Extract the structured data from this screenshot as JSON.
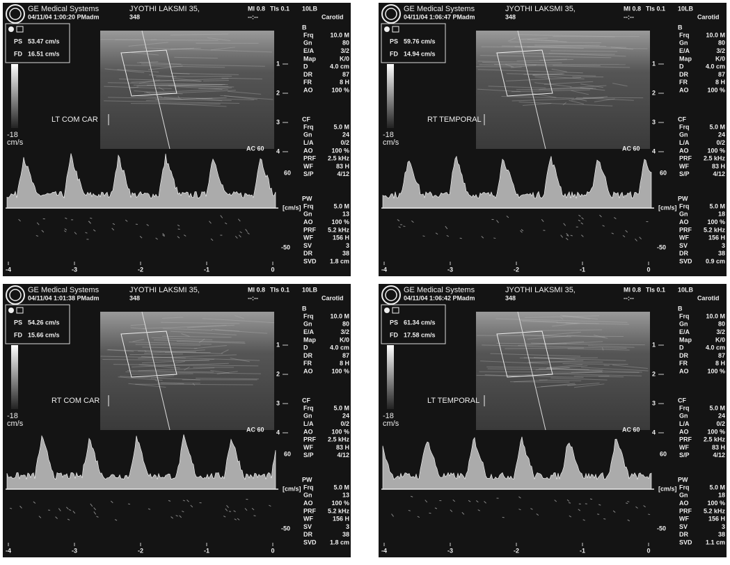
{
  "panels": [
    {
      "header": {
        "company": "GE Medical Systems",
        "datetime": "04/11/04 1:00:20 PM",
        "user": "adm",
        "patient": "JYOTHI LAKSMI 35,",
        "id": "348",
        "mi": "MI 0.8",
        "tis": "TIs 0.1",
        "probe": "10LB",
        "time": "--:--",
        "preset": "Carotid"
      },
      "measurements": {
        "ps_label": "PS",
        "ps_value": "53.47 cm/s",
        "fd_label": "FD",
        "fd_value": "16.51 cm/s"
      },
      "scale": {
        "min": "-18",
        "unit": "cm/s"
      },
      "vessel_label": "LT COM CAR",
      "ac": "AC 60",
      "depth_ticks": [
        "1",
        "2",
        "3",
        "4"
      ],
      "settings": [
        {
          "heading": "B",
          "rows": [
            [
              "Frq",
              "10.0 M"
            ],
            [
              "Gn",
              "80"
            ],
            [
              "E/A",
              "3/2"
            ],
            [
              "Map",
              "K/0"
            ],
            [
              "D",
              "4.0 cm"
            ],
            [
              "DR",
              "87"
            ],
            [
              "FR",
              "8 H"
            ],
            [
              "AO",
              "100 %"
            ]
          ]
        },
        {
          "heading": "CF",
          "rows": [
            [
              "Frq",
              "5.0 M"
            ],
            [
              "Gn",
              "24"
            ],
            [
              "L/A",
              "0/2"
            ],
            [
              "AO",
              "100 %"
            ],
            [
              "PRF",
              "2.5 kHz"
            ],
            [
              "WF",
              "83 H"
            ],
            [
              "S/P",
              "4/12"
            ]
          ]
        },
        {
          "heading": "PW",
          "rows": [
            [
              "Frq",
              "5.0 M"
            ],
            [
              "Gn",
              "13"
            ],
            [
              "AO",
              "100 %"
            ],
            [
              "PRF",
              "5.2 kHz"
            ],
            [
              "WF",
              "156 H"
            ],
            [
              "SV",
              "3"
            ],
            [
              "DR",
              "38"
            ],
            [
              "SVD",
              "1.8 cm"
            ]
          ]
        }
      ],
      "doppler": {
        "top": "60",
        "unit": "[cm/s]",
        "bottom": "-50",
        "time_ticks": [
          "-4",
          "-3",
          "-2",
          "-1",
          "0"
        ]
      }
    },
    {
      "header": {
        "company": "GE Medical Systems",
        "datetime": "04/11/04 1:06:47 PM",
        "user": "adm",
        "patient": "JYOTHI LAKSMI 35,",
        "id": "348",
        "mi": "MI 0.8",
        "tis": "TIs 0.1",
        "probe": "10LB",
        "time": "--:--",
        "preset": "Carotid"
      },
      "measurements": {
        "ps_label": "PS",
        "ps_value": "59.76 cm/s",
        "fd_label": "FD",
        "fd_value": "14.94 cm/s"
      },
      "scale": {
        "min": "-18",
        "unit": "cm/s"
      },
      "vessel_label": "RT TEMPORAL",
      "ac": "AC 60",
      "depth_ticks": [
        "1",
        "2",
        "3",
        "4"
      ],
      "settings": [
        {
          "heading": "B",
          "rows": [
            [
              "Frq",
              "10.0 M"
            ],
            [
              "Gn",
              "80"
            ],
            [
              "E/A",
              "3/2"
            ],
            [
              "Map",
              "K/0"
            ],
            [
              "D",
              "4.0 cm"
            ],
            [
              "DR",
              "87"
            ],
            [
              "FR",
              "8 H"
            ],
            [
              "AO",
              "100 %"
            ]
          ]
        },
        {
          "heading": "CF",
          "rows": [
            [
              "Frq",
              "5.0 M"
            ],
            [
              "Gn",
              "24"
            ],
            [
              "L/A",
              "0/2"
            ],
            [
              "AO",
              "100 %"
            ],
            [
              "PRF",
              "2.5 kHz"
            ],
            [
              "WF",
              "83 H"
            ],
            [
              "S/P",
              "4/12"
            ]
          ]
        },
        {
          "heading": "PW",
          "rows": [
            [
              "Frq",
              "5.0 M"
            ],
            [
              "Gn",
              "18"
            ],
            [
              "AO",
              "100 %"
            ],
            [
              "PRF",
              "5.2 kHz"
            ],
            [
              "WF",
              "156 H"
            ],
            [
              "SV",
              "3"
            ],
            [
              "DR",
              "38"
            ],
            [
              "SVD",
              "0.9 cm"
            ]
          ]
        }
      ],
      "doppler": {
        "top": "60",
        "unit": "[cm/s]",
        "bottom": "-50",
        "time_ticks": [
          "-4",
          "-3",
          "-2",
          "-1",
          "0"
        ]
      }
    },
    {
      "header": {
        "company": "GE Medical Systems",
        "datetime": "04/11/04 1:01:38 PM",
        "user": "adm",
        "patient": "JYOTHI LAKSMI 35,",
        "id": "348",
        "mi": "MI 0.8",
        "tis": "TIs 0.1",
        "probe": "10LB",
        "time": "--:--",
        "preset": "Carotid"
      },
      "measurements": {
        "ps_label": "PS",
        "ps_value": "54.26 cm/s",
        "fd_label": "FD",
        "fd_value": "15.66 cm/s"
      },
      "scale": {
        "min": "-18",
        "unit": "cm/s"
      },
      "vessel_label": "RT COM CAR",
      "ac": "AC 60",
      "depth_ticks": [
        "1",
        "2",
        "3",
        "4"
      ],
      "settings": [
        {
          "heading": "B",
          "rows": [
            [
              "Frq",
              "10.0 M"
            ],
            [
              "Gn",
              "80"
            ],
            [
              "E/A",
              "3/2"
            ],
            [
              "Map",
              "K/0"
            ],
            [
              "D",
              "4.0 cm"
            ],
            [
              "DR",
              "87"
            ],
            [
              "FR",
              "8 H"
            ],
            [
              "AO",
              "100 %"
            ]
          ]
        },
        {
          "heading": "CF",
          "rows": [
            [
              "Frq",
              "5.0 M"
            ],
            [
              "Gn",
              "24"
            ],
            [
              "L/A",
              "0/2"
            ],
            [
              "AO",
              "100 %"
            ],
            [
              "PRF",
              "2.5 kHz"
            ],
            [
              "WF",
              "83 H"
            ],
            [
              "S/P",
              "4/12"
            ]
          ]
        },
        {
          "heading": "PW",
          "rows": [
            [
              "Frq",
              "5.0 M"
            ],
            [
              "Gn",
              "13"
            ],
            [
              "AO",
              "100 %"
            ],
            [
              "PRF",
              "5.2 kHz"
            ],
            [
              "WF",
              "156 H"
            ],
            [
              "SV",
              "3"
            ],
            [
              "DR",
              "38"
            ],
            [
              "SVD",
              "1.8 cm"
            ]
          ]
        }
      ],
      "doppler": {
        "top": "60",
        "unit": "[cm/s]",
        "bottom": "-50",
        "time_ticks": [
          "-4",
          "-3",
          "-2",
          "-1",
          "0"
        ]
      }
    },
    {
      "header": {
        "company": "GE Medical Systems",
        "datetime": "04/11/04 1:06:42 PM",
        "user": "adm",
        "patient": "JYOTHI LAKSMI 35,",
        "id": "348",
        "mi": "MI 0.8",
        "tis": "TIs 0.1",
        "probe": "10LB",
        "time": "--:--",
        "preset": "Carotid"
      },
      "measurements": {
        "ps_label": "PS",
        "ps_value": "61.34 cm/s",
        "fd_label": "FD",
        "fd_value": "17.58 cm/s"
      },
      "scale": {
        "min": "-18",
        "unit": "cm/s"
      },
      "vessel_label": "LT TEMPORAL",
      "ac": "AC 60",
      "depth_ticks": [
        "1",
        "2",
        "3",
        "4"
      ],
      "settings": [
        {
          "heading": "B",
          "rows": [
            [
              "Frq",
              "10.0 M"
            ],
            [
              "Gn",
              "80"
            ],
            [
              "E/A",
              "3/2"
            ],
            [
              "Map",
              "K/0"
            ],
            [
              "D",
              "4.0 cm"
            ],
            [
              "DR",
              "87"
            ],
            [
              "FR",
              "8 H"
            ],
            [
              "AO",
              "100 %"
            ]
          ]
        },
        {
          "heading": "CF",
          "rows": [
            [
              "Frq",
              "5.0 M"
            ],
            [
              "Gn",
              "24"
            ],
            [
              "L/A",
              "0/2"
            ],
            [
              "AO",
              "100 %"
            ],
            [
              "PRF",
              "2.5 kHz"
            ],
            [
              "WF",
              "83 H"
            ],
            [
              "S/P",
              "4/12"
            ]
          ]
        },
        {
          "heading": "PW",
          "rows": [
            [
              "Frq",
              "5.0 M"
            ],
            [
              "Gn",
              "18"
            ],
            [
              "AO",
              "100 %"
            ],
            [
              "PRF",
              "5.2 kHz"
            ],
            [
              "WF",
              "156 H"
            ],
            [
              "SV",
              "3"
            ],
            [
              "DR",
              "38"
            ],
            [
              "SVD",
              "1.1 cm"
            ]
          ]
        }
      ],
      "doppler": {
        "top": "60",
        "unit": "[cm/s]",
        "bottom": "-50",
        "time_ticks": [
          "-4",
          "-3",
          "-2",
          "-1",
          "0"
        ]
      }
    }
  ]
}
